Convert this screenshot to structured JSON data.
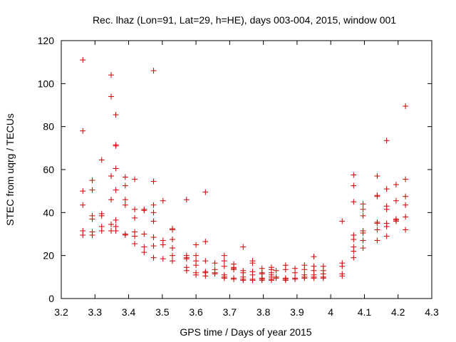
{
  "chart_data": {
    "type": "scatter",
    "title": "Rec. lhaz (Lon=91, Lat=29, h=HE), days 003-004, 2015, window 001",
    "xlabel": "GPS time / Days of year 2015",
    "ylabel": "STEC from uqrg / TECUs",
    "xlim": [
      3.2,
      4.3
    ],
    "ylim": [
      0,
      120
    ],
    "xticks": [
      "3.2",
      "3.3",
      "3.4",
      "3.5",
      "3.6",
      "3.7",
      "3.8",
      "3.9",
      "4",
      "4.1",
      "4.2",
      "4.3"
    ],
    "yticks": [
      "0",
      "20",
      "40",
      "60",
      "80",
      "100",
      "120"
    ],
    "grid": false,
    "marker": "+",
    "marker_color": "#cc0000",
    "points": [
      [
        3.264,
        111
      ],
      [
        3.264,
        78
      ],
      [
        3.264,
        50
      ],
      [
        3.264,
        43.5
      ],
      [
        3.264,
        31.5
      ],
      [
        3.264,
        29.5
      ],
      [
        3.292,
        55
      ],
      [
        3.292,
        50.5
      ],
      [
        3.292,
        38.5
      ],
      [
        3.292,
        37
      ],
      [
        3.292,
        31
      ],
      [
        3.292,
        29.5
      ],
      [
        3.32,
        64.5
      ],
      [
        3.32,
        39.5
      ],
      [
        3.32,
        38.5
      ],
      [
        3.32,
        33.5
      ],
      [
        3.32,
        31.5
      ],
      [
        3.348,
        104
      ],
      [
        3.348,
        94
      ],
      [
        3.348,
        57
      ],
      [
        3.348,
        46
      ],
      [
        3.348,
        34.5
      ],
      [
        3.348,
        31.5
      ],
      [
        3.362,
        85.5
      ],
      [
        3.362,
        71.5
      ],
      [
        3.362,
        71
      ],
      [
        3.362,
        60.5
      ],
      [
        3.362,
        50.5
      ],
      [
        3.362,
        36.5
      ],
      [
        3.362,
        33.5
      ],
      [
        3.362,
        31.5
      ],
      [
        3.39,
        56.5
      ],
      [
        3.39,
        52.5
      ],
      [
        3.39,
        46
      ],
      [
        3.39,
        43.5
      ],
      [
        3.39,
        30
      ],
      [
        3.39,
        29.5
      ],
      [
        3.418,
        55.5
      ],
      [
        3.418,
        41.5
      ],
      [
        3.418,
        37.5
      ],
      [
        3.418,
        31
      ],
      [
        3.418,
        29
      ],
      [
        3.418,
        25.5
      ],
      [
        3.446,
        41.5
      ],
      [
        3.446,
        41
      ],
      [
        3.446,
        30
      ],
      [
        3.446,
        24
      ],
      [
        3.446,
        21.5
      ],
      [
        3.474,
        106
      ],
      [
        3.474,
        54.5
      ],
      [
        3.474,
        43.5
      ],
      [
        3.474,
        40
      ],
      [
        3.474,
        36
      ],
      [
        3.474,
        28.5
      ],
      [
        3.474,
        24.5
      ],
      [
        3.474,
        19
      ],
      [
        3.502,
        45.5
      ],
      [
        3.502,
        27
      ],
      [
        3.502,
        25
      ],
      [
        3.502,
        18.5
      ],
      [
        3.53,
        32.5
      ],
      [
        3.53,
        32
      ],
      [
        3.53,
        27.5
      ],
      [
        3.53,
        23.5
      ],
      [
        3.53,
        20
      ],
      [
        3.53,
        17.5
      ],
      [
        3.572,
        46
      ],
      [
        3.572,
        20
      ],
      [
        3.572,
        19
      ],
      [
        3.572,
        18.5
      ],
      [
        3.572,
        14.5
      ],
      [
        3.572,
        13
      ],
      [
        3.6,
        25
      ],
      [
        3.6,
        20
      ],
      [
        3.6,
        17.5
      ],
      [
        3.6,
        15.5
      ],
      [
        3.6,
        12
      ],
      [
        3.6,
        11
      ],
      [
        3.628,
        49.5
      ],
      [
        3.628,
        26.5
      ],
      [
        3.628,
        17.5
      ],
      [
        3.628,
        12.5
      ],
      [
        3.628,
        12
      ],
      [
        3.628,
        10.5
      ],
      [
        3.656,
        16.5
      ],
      [
        3.656,
        13.5
      ],
      [
        3.656,
        12
      ],
      [
        3.656,
        11.5
      ],
      [
        3.684,
        20
      ],
      [
        3.684,
        17.5
      ],
      [
        3.684,
        15
      ],
      [
        3.684,
        11
      ],
      [
        3.684,
        10
      ],
      [
        3.684,
        9.5
      ],
      [
        3.712,
        16
      ],
      [
        3.712,
        14.5
      ],
      [
        3.712,
        14
      ],
      [
        3.712,
        13.5
      ],
      [
        3.712,
        9.5
      ],
      [
        3.712,
        9
      ],
      [
        3.74,
        24
      ],
      [
        3.74,
        13
      ],
      [
        3.74,
        12
      ],
      [
        3.74,
        10
      ],
      [
        3.74,
        9
      ],
      [
        3.74,
        8.5
      ],
      [
        3.768,
        17.5
      ],
      [
        3.768,
        16.5
      ],
      [
        3.768,
        12.5
      ],
      [
        3.768,
        11
      ],
      [
        3.768,
        9
      ],
      [
        3.768,
        8.5
      ],
      [
        3.796,
        14
      ],
      [
        3.796,
        12
      ],
      [
        3.796,
        11.5
      ],
      [
        3.796,
        9.5
      ],
      [
        3.796,
        9
      ],
      [
        3.796,
        8.5
      ],
      [
        3.824,
        14.5
      ],
      [
        3.824,
        13.5
      ],
      [
        3.824,
        12
      ],
      [
        3.824,
        11
      ],
      [
        3.824,
        10
      ],
      [
        3.824,
        9
      ],
      [
        3.824,
        8.5
      ],
      [
        3.838,
        13
      ],
      [
        3.838,
        10
      ],
      [
        3.838,
        9.5
      ],
      [
        3.866,
        15.5
      ],
      [
        3.866,
        13.5
      ],
      [
        3.866,
        9.5
      ],
      [
        3.866,
        9
      ],
      [
        3.866,
        8.5
      ],
      [
        3.894,
        14
      ],
      [
        3.894,
        12
      ],
      [
        3.894,
        9.5
      ],
      [
        3.894,
        9
      ],
      [
        3.922,
        15.5
      ],
      [
        3.922,
        13.5
      ],
      [
        3.922,
        11
      ],
      [
        3.922,
        10
      ],
      [
        3.922,
        9.5
      ],
      [
        3.95,
        19.5
      ],
      [
        3.95,
        15
      ],
      [
        3.95,
        13
      ],
      [
        3.95,
        11
      ],
      [
        3.95,
        10
      ],
      [
        3.95,
        9.5
      ],
      [
        3.978,
        15
      ],
      [
        3.978,
        13
      ],
      [
        3.978,
        11.5
      ],
      [
        3.978,
        10
      ],
      [
        3.978,
        9.5
      ],
      [
        4.034,
        36
      ],
      [
        4.034,
        16.5
      ],
      [
        4.034,
        15
      ],
      [
        4.034,
        11.5
      ],
      [
        4.034,
        10.5
      ],
      [
        4.068,
        57.5
      ],
      [
        4.068,
        52.5
      ],
      [
        4.068,
        45
      ],
      [
        4.068,
        29.5
      ],
      [
        4.068,
        27.5
      ],
      [
        4.068,
        24
      ],
      [
        4.068,
        22
      ],
      [
        4.068,
        19
      ],
      [
        4.096,
        44
      ],
      [
        4.096,
        41.5
      ],
      [
        4.096,
        38.5
      ],
      [
        4.096,
        31.5
      ],
      [
        4.096,
        30.5
      ],
      [
        4.096,
        27
      ],
      [
        4.096,
        23.5
      ],
      [
        4.138,
        57
      ],
      [
        4.138,
        48
      ],
      [
        4.138,
        47.5
      ],
      [
        4.138,
        35.5
      ],
      [
        4.138,
        35
      ],
      [
        4.138,
        32
      ],
      [
        4.138,
        27
      ],
      [
        4.166,
        73.5
      ],
      [
        4.166,
        51
      ],
      [
        4.166,
        43
      ],
      [
        4.166,
        41.5
      ],
      [
        4.166,
        35
      ],
      [
        4.166,
        33.5
      ],
      [
        4.166,
        29
      ],
      [
        4.194,
        53
      ],
      [
        4.194,
        45.5
      ],
      [
        4.194,
        37
      ],
      [
        4.194,
        36.5
      ],
      [
        4.194,
        36
      ],
      [
        4.222,
        89.5
      ],
      [
        4.222,
        55.5
      ],
      [
        4.222,
        47.5
      ],
      [
        4.222,
        43.5
      ],
      [
        4.222,
        38
      ],
      [
        4.222,
        32
      ]
    ]
  }
}
